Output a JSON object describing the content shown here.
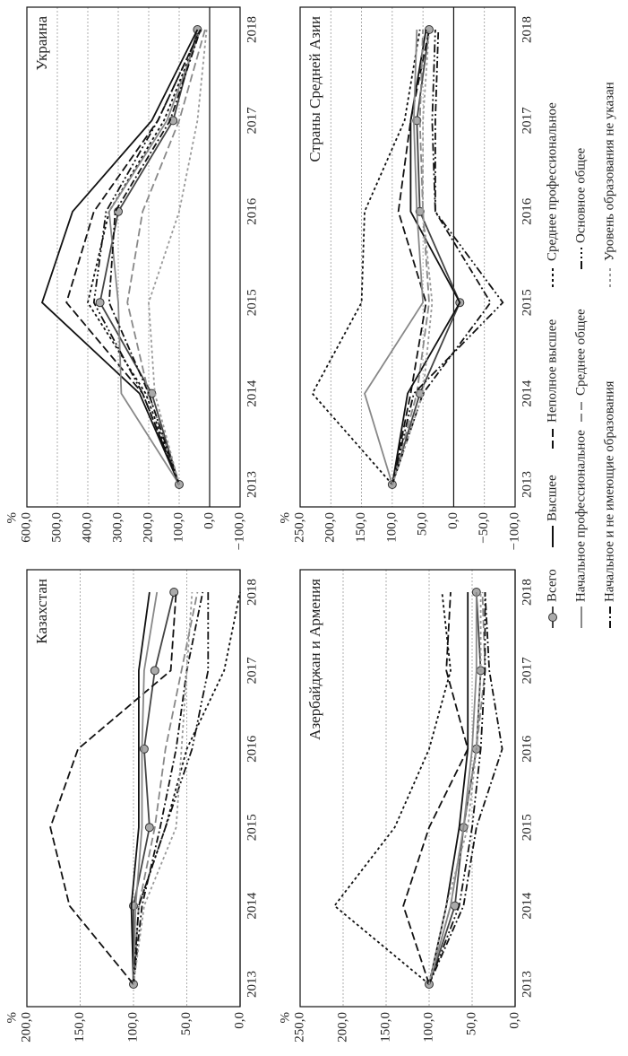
{
  "legend": [
    {
      "name": "Всего",
      "color": "#444444",
      "dash": "none",
      "marker": "circle"
    },
    {
      "name": "Высшее",
      "color": "#111111",
      "dash": "none"
    },
    {
      "name": "Неполное высшее",
      "color": "#111111",
      "dash": "9,4"
    },
    {
      "name": "Среднее профессиональное",
      "color": "#111111",
      "dash": "3,3"
    },
    {
      "name": "Начальное профессиональное",
      "color": "#888888",
      "dash": "none"
    },
    {
      "name": "Среднее общее",
      "color": "#888888",
      "dash": "9,4"
    },
    {
      "name": "Основное общее",
      "color": "#111111",
      "dash": "9,3,2,3,2,3"
    },
    {
      "name": "Начальное и не имеющие образования",
      "color": "#111111",
      "dash": "8,3,2,3"
    },
    {
      "name": "Уровень образования не указан",
      "color": "#9a9a9a",
      "dash": "3,3"
    }
  ],
  "chart_data": [
    {
      "type": "line",
      "title": "Украина",
      "y_label": "%",
      "categories": [
        "2013",
        "2014",
        "2015",
        "2016",
        "2017",
        "2018"
      ],
      "ylim": [
        -100,
        600
      ],
      "yticks": [
        {
          "value": -100,
          "label": "−100,0"
        },
        {
          "value": 0,
          "label": "0,0"
        },
        {
          "value": 100,
          "label": "100,0"
        },
        {
          "value": 200,
          "label": "200,0"
        },
        {
          "value": 300,
          "label": "300,0"
        },
        {
          "value": 400,
          "label": "400,0"
        },
        {
          "value": 500,
          "label": "500,0"
        },
        {
          "value": 600,
          "label": "600,0"
        }
      ],
      "series": [
        {
          "values": [
            100,
            190,
            360,
            300,
            120,
            40
          ]
        },
        {
          "values": [
            100,
            230,
            550,
            450,
            190,
            40
          ]
        },
        {
          "values": [
            100,
            220,
            470,
            380,
            170,
            30
          ]
        },
        {
          "values": [
            100,
            210,
            400,
            330,
            150,
            30
          ]
        },
        {
          "values": [
            100,
            290,
            300,
            330,
            140,
            30
          ]
        },
        {
          "values": [
            100,
            200,
            270,
            220,
            100,
            15
          ]
        },
        {
          "values": [
            100,
            220,
            380,
            340,
            170,
            30
          ]
        },
        {
          "values": [
            100,
            200,
            330,
            310,
            130,
            30
          ]
        },
        {
          "values": [
            100,
            180,
            200,
            100,
            40,
            10
          ]
        }
      ]
    },
    {
      "type": "line",
      "title": "Казахстан",
      "y_label": "%",
      "categories": [
        "2013",
        "2014",
        "2015",
        "2016",
        "2017",
        "2018"
      ],
      "ylim": [
        0,
        200
      ],
      "yticks": [
        {
          "value": 0,
          "label": "0,0"
        },
        {
          "value": 50,
          "label": "50,0"
        },
        {
          "value": 100,
          "label": "100,0"
        },
        {
          "value": 150,
          "label": "150,0"
        },
        {
          "value": 200,
          "label": "200,0"
        }
      ],
      "series": [
        {
          "values": [
            100,
            100,
            85,
            90,
            80,
            62
          ]
        },
        {
          "values": [
            100,
            102,
            95,
            95,
            95,
            85
          ]
        },
        {
          "values": [
            100,
            160,
            178,
            152,
            65,
            60
          ]
        },
        {
          "values": [
            100,
            95,
            70,
            50,
            15,
            0
          ]
        },
        {
          "values": [
            100,
            98,
            92,
            92,
            90,
            78
          ]
        },
        {
          "values": [
            100,
            95,
            80,
            70,
            55,
            40
          ]
        },
        {
          "values": [
            100,
            95,
            70,
            45,
            30,
            30
          ]
        },
        {
          "values": [
            100,
            92,
            75,
            60,
            50,
            35
          ]
        },
        {
          "values": [
            100,
            90,
            60,
            55,
            50,
            45
          ]
        }
      ]
    },
    {
      "type": "line",
      "title": "Страны Средней Азии",
      "y_label": "%",
      "categories": [
        "2013",
        "2014",
        "2015",
        "2016",
        "2017",
        "2018"
      ],
      "ylim": [
        -100,
        250
      ],
      "yticks": [
        {
          "value": -100,
          "label": "−100,0"
        },
        {
          "value": -50,
          "label": "−50,0"
        },
        {
          "value": 0,
          "label": "0,0"
        },
        {
          "value": 50,
          "label": "50,0"
        },
        {
          "value": 100,
          "label": "100,0"
        },
        {
          "value": 150,
          "label": "150,0"
        },
        {
          "value": 200,
          "label": "200,0"
        },
        {
          "value": 250,
          "label": "250,0"
        }
      ],
      "series": [
        {
          "values": [
            100,
            55,
            -10,
            55,
            60,
            40
          ]
        },
        {
          "values": [
            100,
            75,
            -10,
            70,
            70,
            45
          ]
        },
        {
          "values": [
            100,
            70,
            45,
            90,
            70,
            40
          ]
        },
        {
          "values": [
            100,
            230,
            150,
            145,
            80,
            55
          ]
        },
        {
          "values": [
            100,
            145,
            50,
            60,
            65,
            60
          ]
        },
        {
          "values": [
            100,
            60,
            40,
            50,
            55,
            50
          ]
        },
        {
          "values": [
            100,
            65,
            -80,
            30,
            35,
            30
          ]
        },
        {
          "values": [
            100,
            50,
            -60,
            30,
            30,
            25
          ]
        },
        {
          "values": [
            100,
            50,
            35,
            50,
            50,
            40
          ]
        }
      ]
    },
    {
      "type": "line",
      "title": "Азербайджан и Армения",
      "y_label": "%",
      "categories": [
        "2013",
        "2014",
        "2015",
        "2016",
        "2017",
        "2018"
      ],
      "ylim": [
        0,
        250
      ],
      "yticks": [
        {
          "value": 0,
          "label": "0,0"
        },
        {
          "value": 50,
          "label": "50,0"
        },
        {
          "value": 100,
          "label": "100,0"
        },
        {
          "value": 150,
          "label": "150,0"
        },
        {
          "value": 200,
          "label": "200,0"
        },
        {
          "value": 250,
          "label": "250,0"
        }
      ],
      "series": [
        {
          "values": [
            100,
            70,
            60,
            45,
            40,
            45
          ]
        },
        {
          "values": [
            100,
            80,
            65,
            55,
            55,
            55
          ]
        },
        {
          "values": [
            100,
            130,
            100,
            55,
            80,
            75
          ]
        },
        {
          "values": [
            100,
            210,
            140,
            100,
            75,
            85
          ]
        },
        {
          "values": [
            100,
            75,
            60,
            50,
            45,
            45
          ]
        },
        {
          "values": [
            100,
            75,
            60,
            45,
            35,
            38
          ]
        },
        {
          "values": [
            100,
            65,
            50,
            40,
            35,
            35
          ]
        },
        {
          "values": [
            100,
            60,
            45,
            15,
            30,
            35
          ]
        },
        {
          "values": [
            100,
            80,
            55,
            45,
            40,
            40
          ]
        }
      ]
    }
  ]
}
